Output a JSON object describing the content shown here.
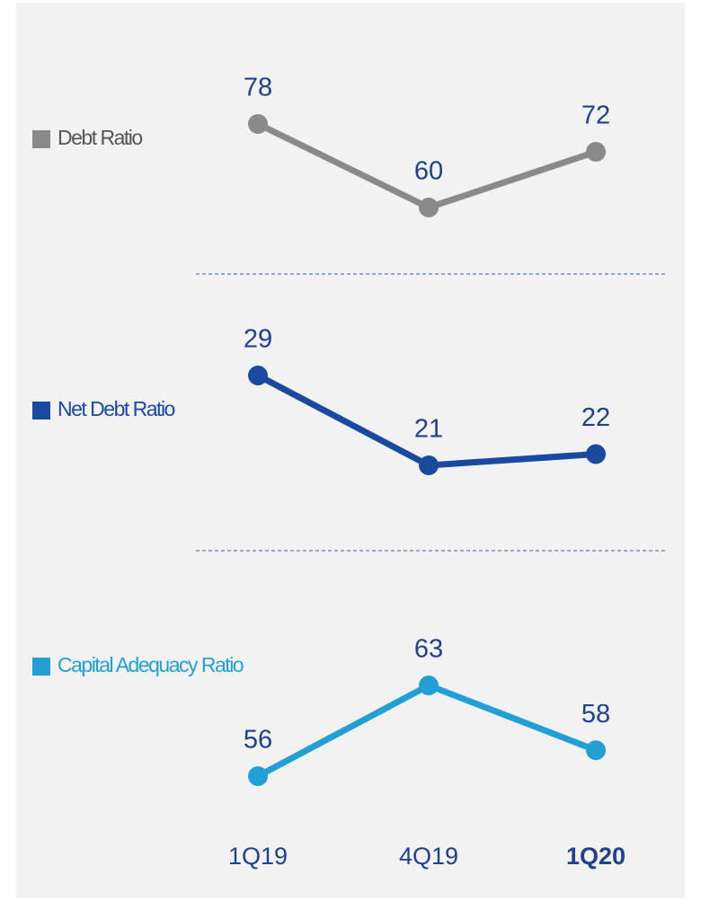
{
  "chart_data": [
    {
      "type": "line",
      "series": [
        {
          "name": "Debt Ratio",
          "color": "#8a8a8a",
          "values": [
            78,
            60,
            72
          ]
        }
      ]
    },
    {
      "type": "line",
      "series": [
        {
          "name": "Net Debt Ratio",
          "color": "#1a4aa0",
          "values": [
            29,
            21,
            22
          ]
        }
      ]
    },
    {
      "type": "line",
      "categories": [
        "1Q19",
        "4Q19",
        "1Q20"
      ],
      "series": [
        {
          "name": "Capital Adequacy Ratio",
          "color": "#22a0d6",
          "values": [
            56,
            63,
            58
          ]
        }
      ]
    }
  ]
}
